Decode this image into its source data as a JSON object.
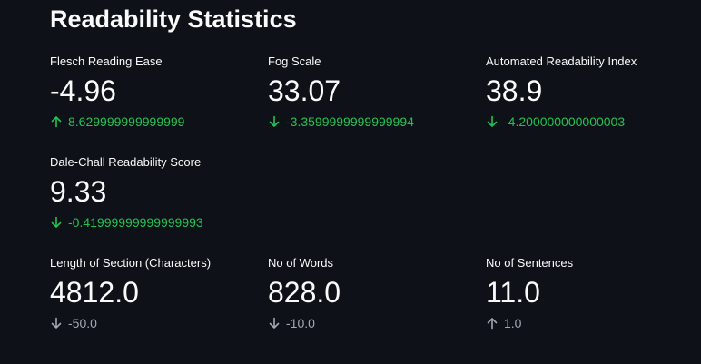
{
  "title": "Readability Statistics",
  "colors": {
    "background": "#0e1117",
    "text": "#fafafa",
    "delta_positive": "#21c354",
    "delta_neutral": "#a3a8b4"
  },
  "metrics": [
    {
      "label": "Flesch Reading Ease",
      "value": "-4.96",
      "delta": "8.629999999999999",
      "direction": "up-arrow-icon"
    },
    {
      "label": "Fog Scale",
      "value": "33.07",
      "delta": "-3.3599999999999994",
      "direction": "down-arrow-icon"
    },
    {
      "label": "Automated Readability Index",
      "value": "38.9",
      "delta": "-4.200000000000003",
      "direction": "down-arrow-icon"
    },
    {
      "label": "Dale-Chall Readability Score",
      "value": "9.33",
      "delta": "-0.41999999999999993",
      "direction": "down-arrow-icon"
    },
    {
      "label": "Length of Section (Characters)",
      "value": "4812.0",
      "delta": "-50.0",
      "direction": "down-arrow-icon"
    },
    {
      "label": "No of Words",
      "value": "828.0",
      "delta": "-10.0",
      "direction": "down-arrow-icon"
    },
    {
      "label": "No of Sentences",
      "value": "11.0",
      "delta": "1.0",
      "direction": "up-arrow-icon"
    }
  ]
}
